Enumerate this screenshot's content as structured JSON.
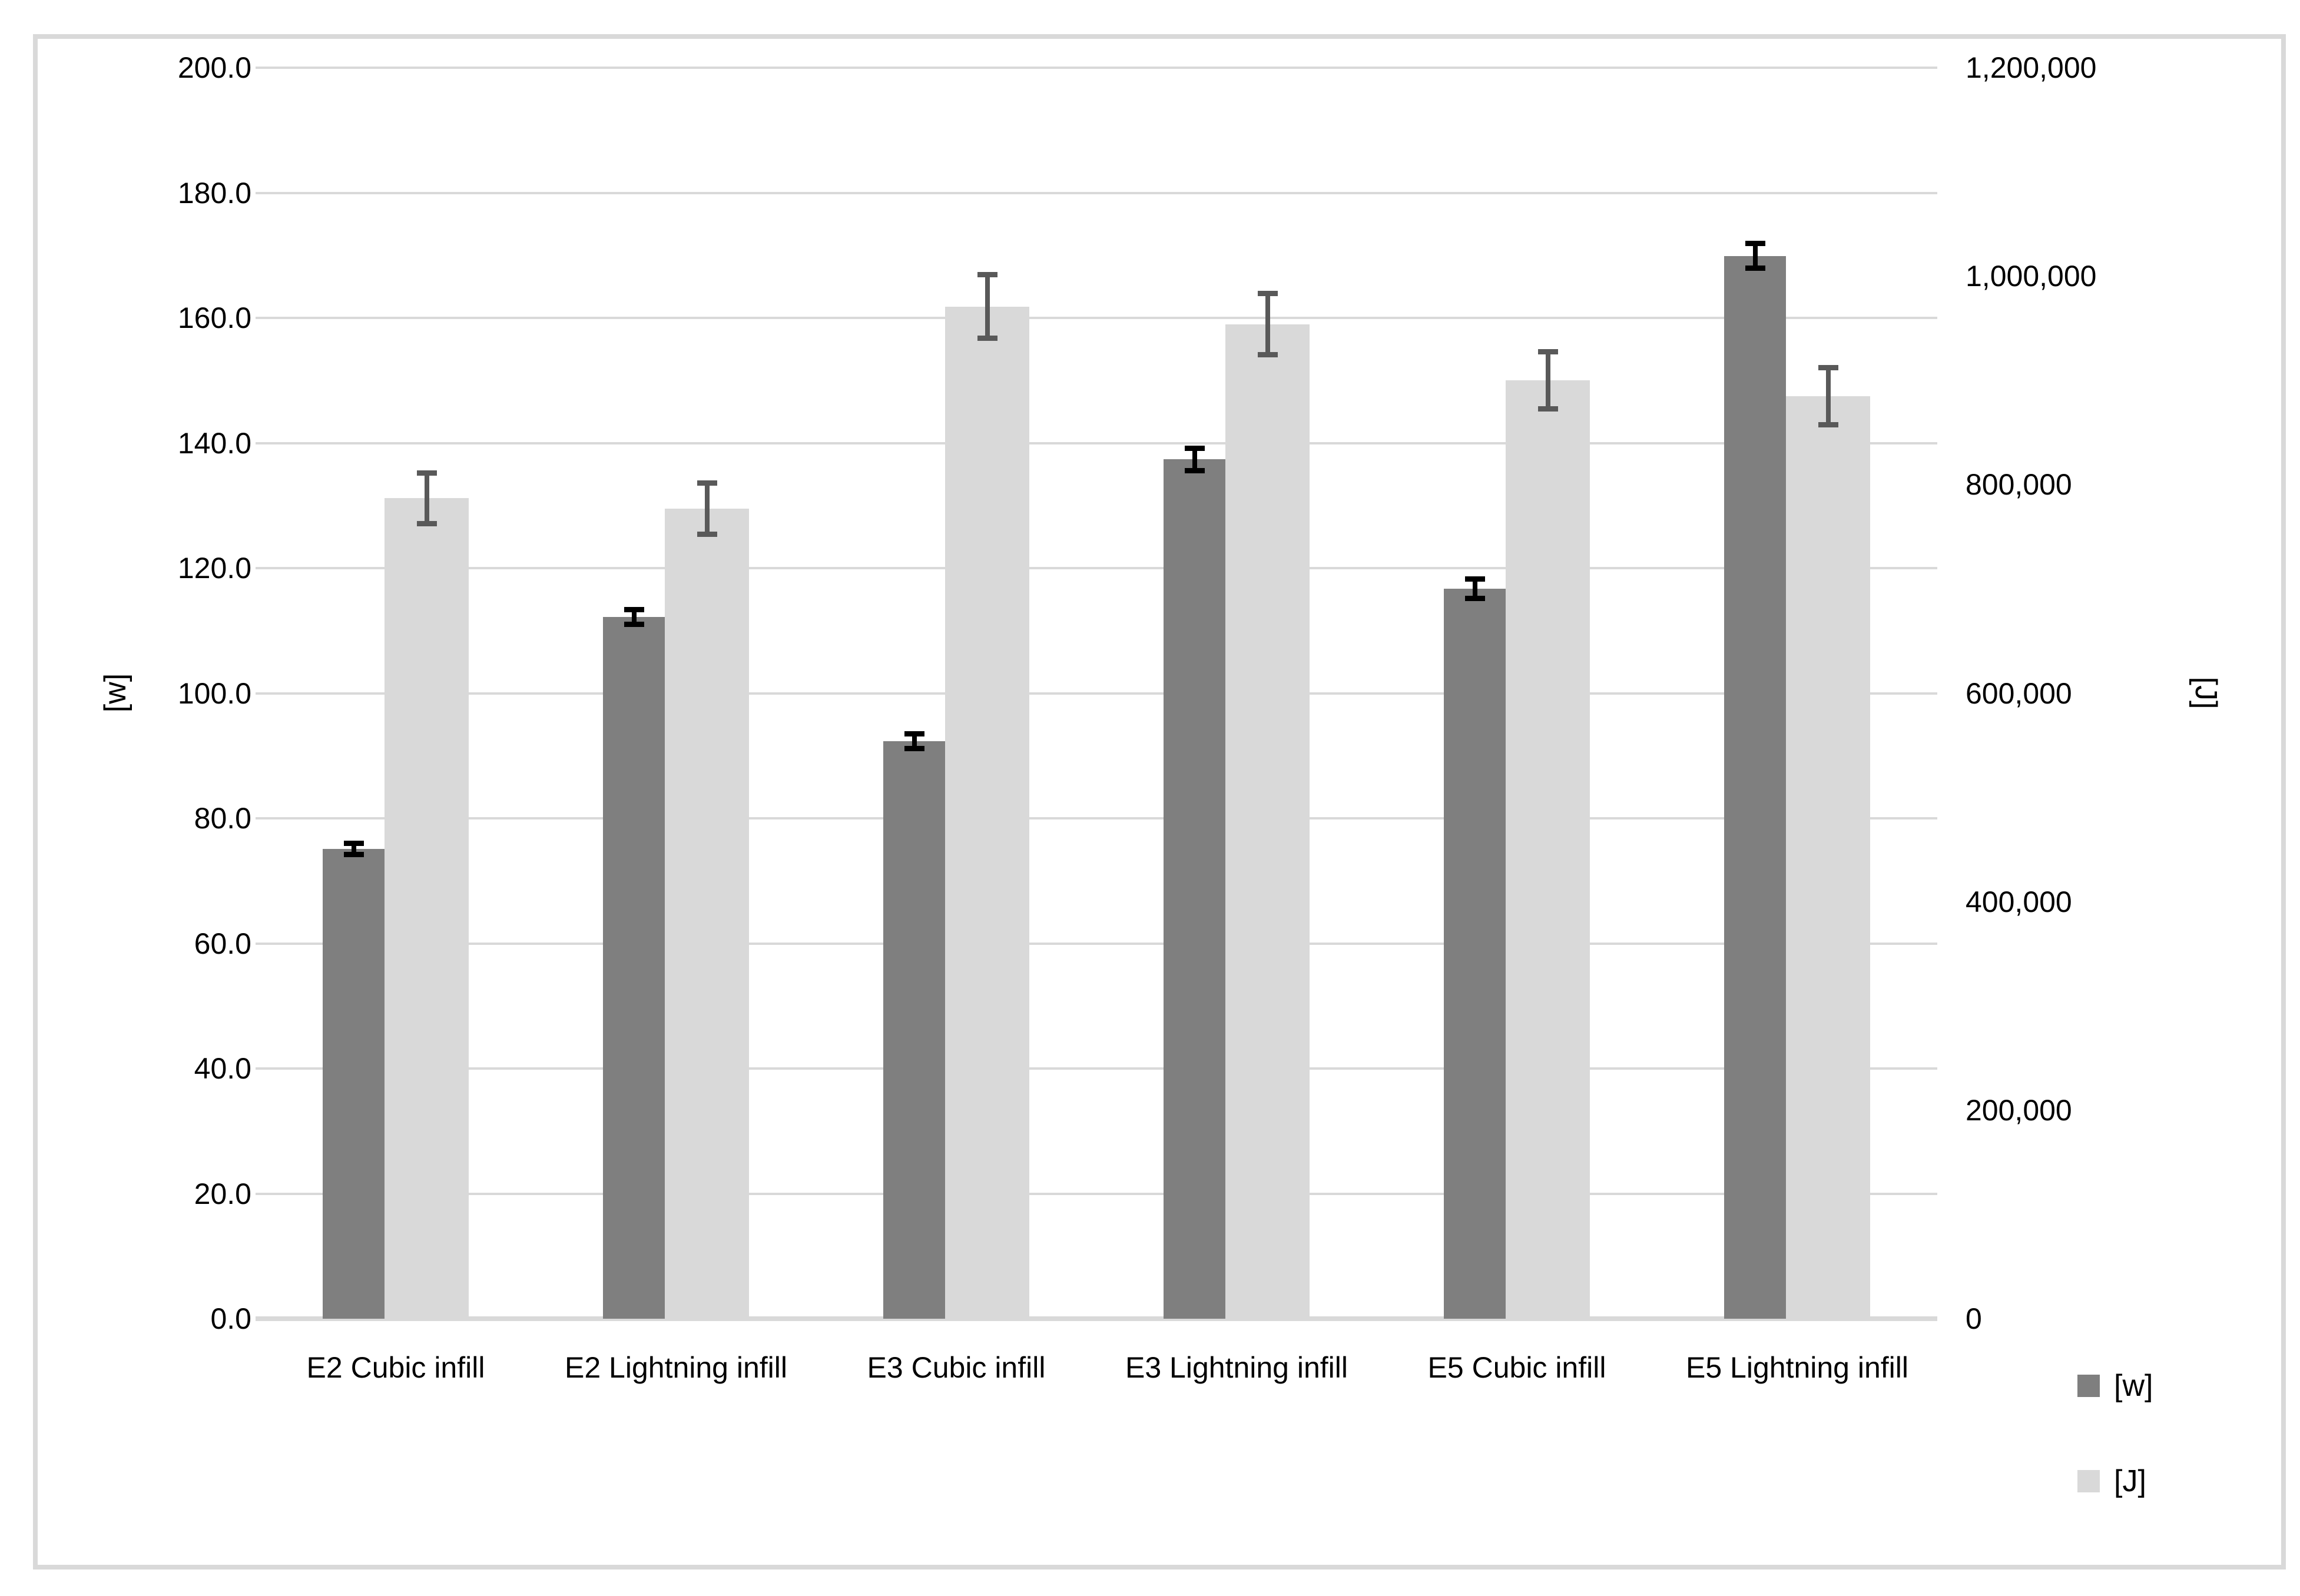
{
  "chart_data": {
    "type": "bar",
    "title": "",
    "categories": [
      "E2 Cubic infill",
      "E2 Lightning infill",
      "E3 Cubic infill",
      "E3 Lightning infill",
      "E5 Cubic infill",
      "E5 Lightning infill"
    ],
    "series": [
      {
        "name": "[w]",
        "axis": "left",
        "color": "#7f7f7f",
        "error_color": "#000000",
        "values": [
          75.1,
          112.2,
          92.3,
          137.4,
          116.7,
          169.9
        ],
        "errors": [
          1.3,
          1.6,
          1.6,
          2.2,
          2.0,
          2.4
        ]
      },
      {
        "name": "[J]",
        "axis": "right",
        "color": "#d9d9d9",
        "error_color": "#595959",
        "values": [
          787000,
          777000,
          971000,
          954000,
          900000,
          885000
        ],
        "errors": [
          27000,
          27000,
          33000,
          32000,
          30000,
          30000
        ]
      }
    ],
    "left_axis": {
      "label": "[w]",
      "min": 0,
      "max": 200,
      "step": 20,
      "ticks": [
        "200.0",
        "180.0",
        "160.0",
        "140.0",
        "120.0",
        "100.0",
        "80.0",
        "60.0",
        "40.0",
        "20.0",
        "0.0"
      ]
    },
    "right_axis": {
      "label": "[J]",
      "min": 0,
      "max": 1200000,
      "step": 200000,
      "ticks": [
        "1,200,000",
        "1,000,000",
        "800,000",
        "600,000",
        "400,000",
        "200,000",
        "0"
      ]
    },
    "legend": {
      "position": "bottom-right",
      "items": [
        "[w]",
        "[J]"
      ]
    },
    "grid": true,
    "colors": {
      "gridline": "#d9d9d9",
      "frame": "#d9d9d9",
      "background": "#ffffff"
    }
  }
}
